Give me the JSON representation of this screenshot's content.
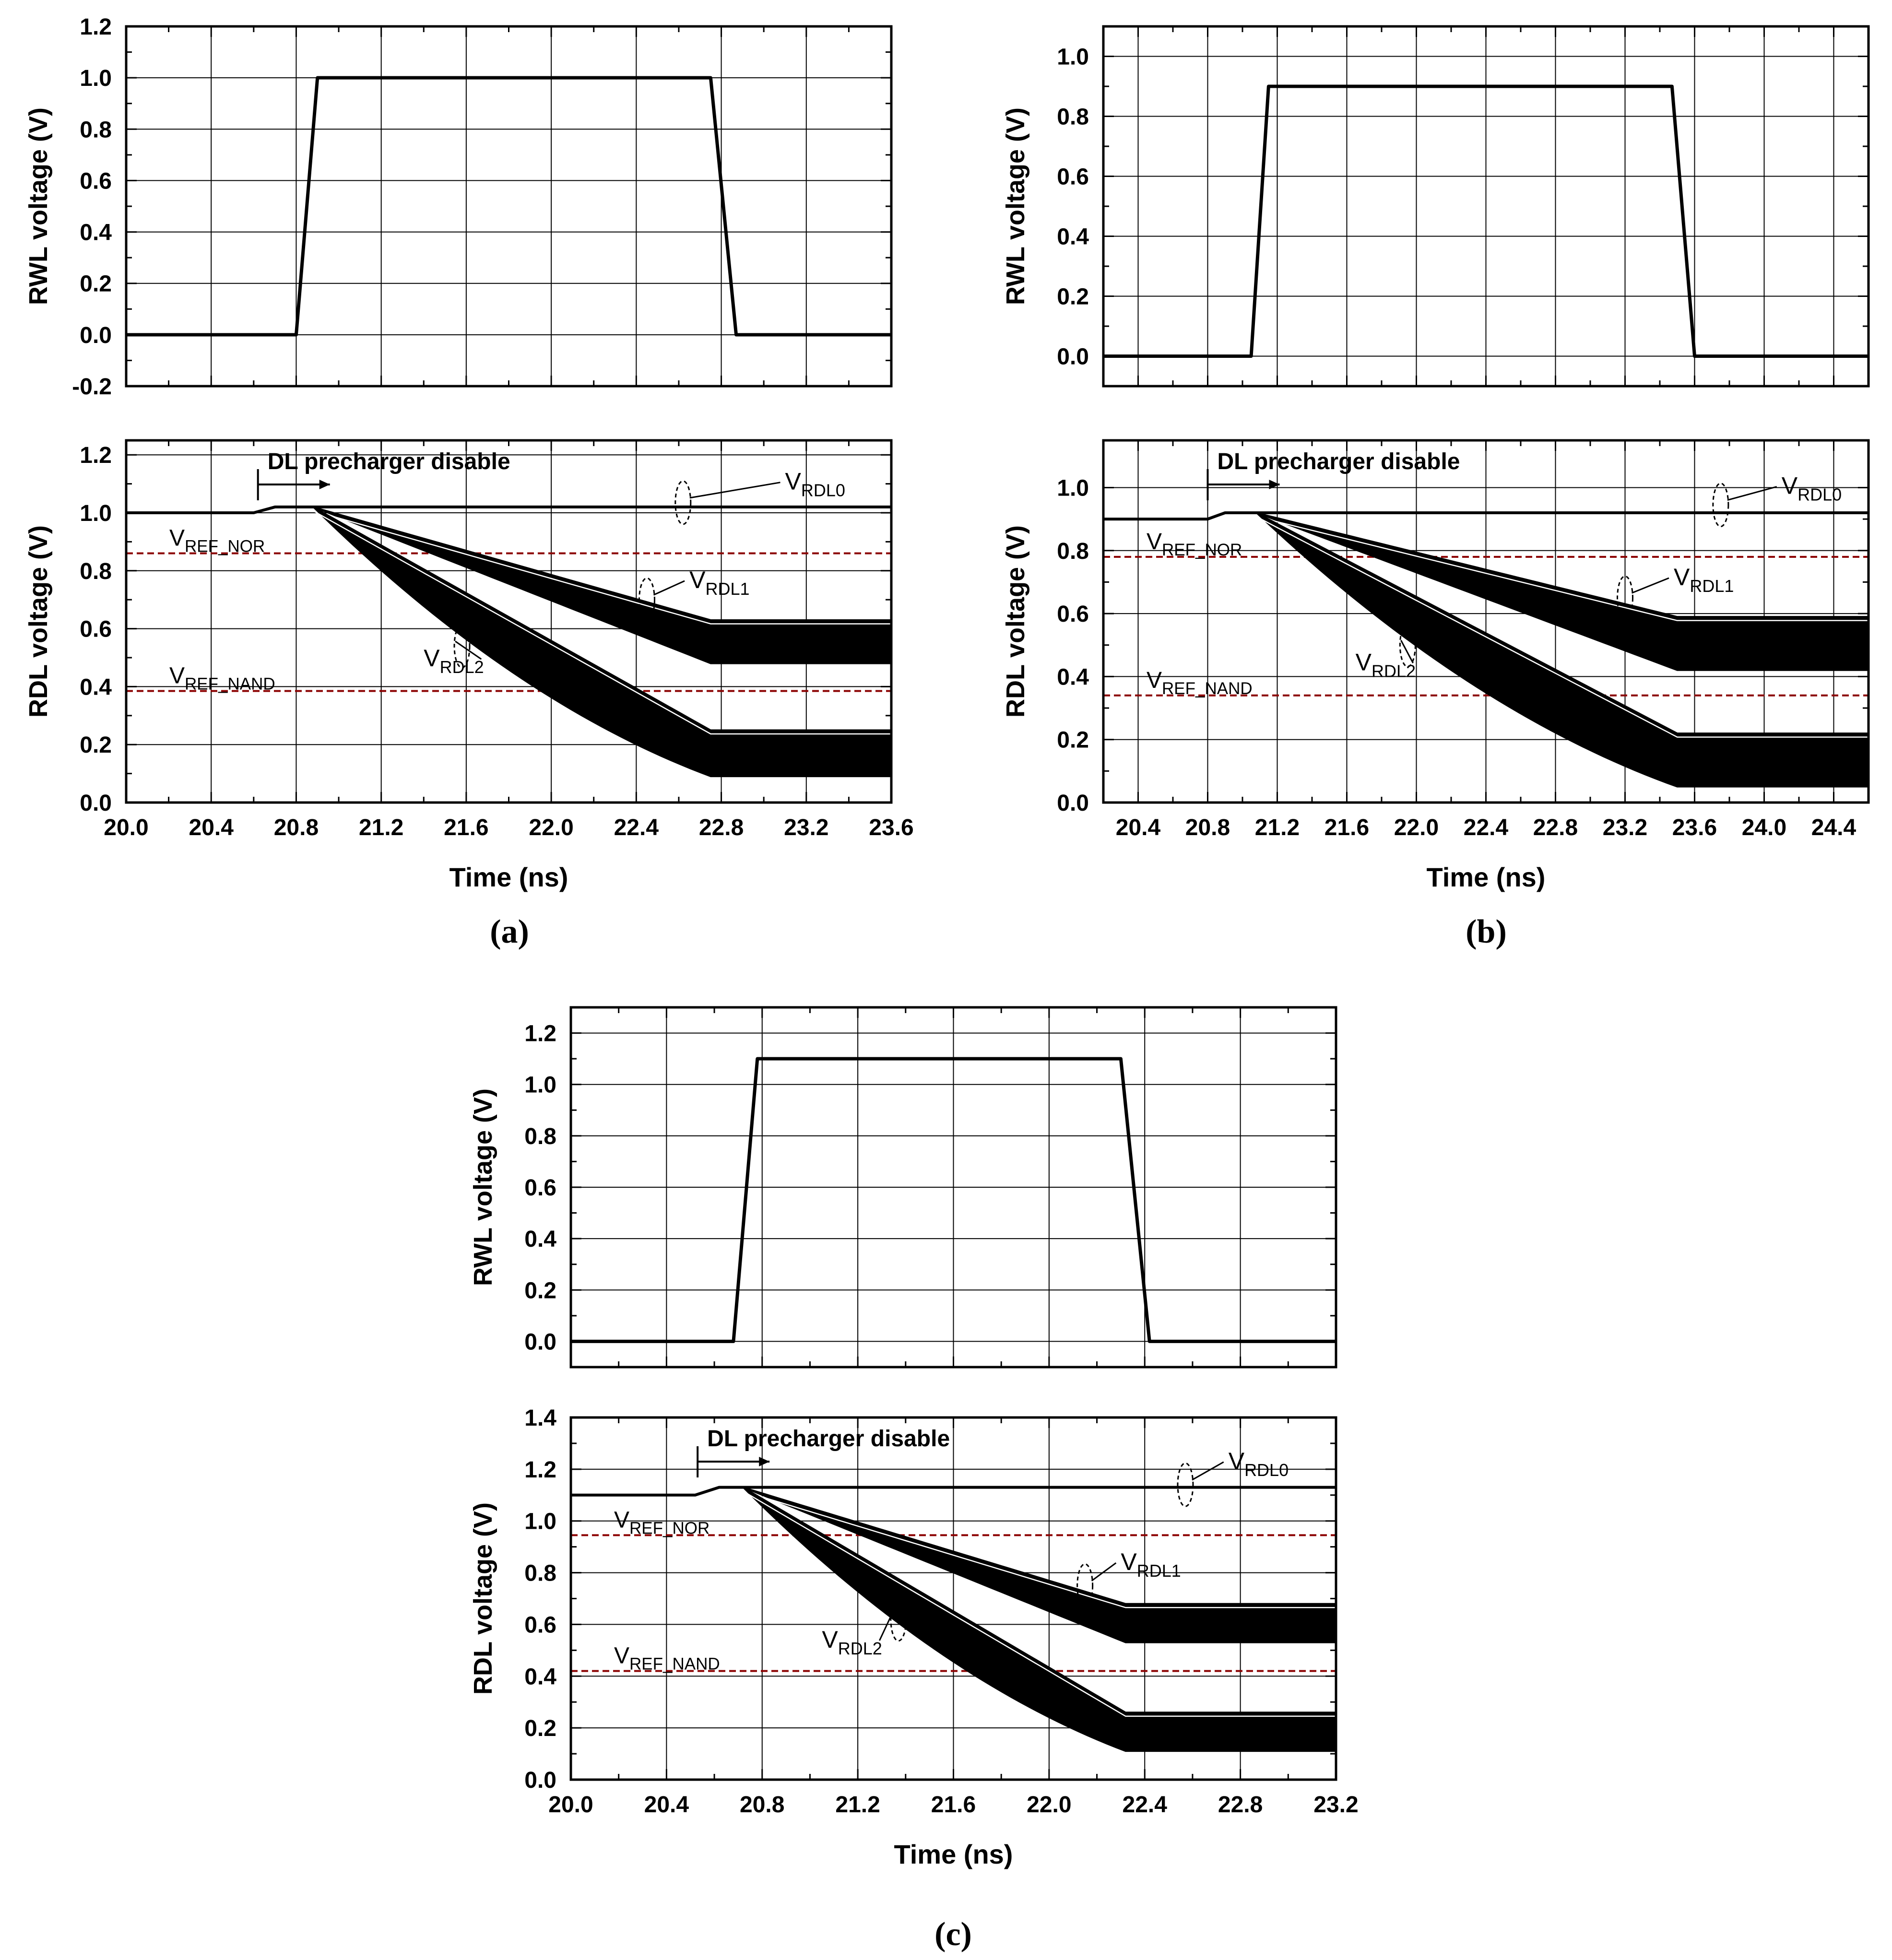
{
  "figure": {
    "panel_labels": [
      "(a)",
      "(b)",
      "(c)"
    ],
    "annotation_text": "DL precharger disable",
    "colors": {
      "trace": "#000000",
      "reference_line": "#8b0000",
      "frame": "#000000"
    }
  },
  "chart_data": [
    {
      "panel": "(a)",
      "type": "line",
      "plot": "RWL",
      "xlabel": "",
      "ylabel": "RWL voltage  (V)",
      "xlim": [
        20.0,
        23.6
      ],
      "ylim": [
        -0.2,
        1.2
      ],
      "xticks": [
        20.0,
        20.4,
        20.8,
        21.2,
        21.6,
        22.0,
        22.4,
        22.8,
        23.2,
        23.6
      ],
      "yticks": [
        -0.2,
        0.0,
        0.2,
        0.4,
        0.6,
        0.8,
        1.0,
        1.2
      ],
      "ytick_labels": [
        "-0.2",
        "0.0",
        "0.2",
        "0.4",
        "0.6",
        "0.8",
        "1.0",
        "1.2"
      ],
      "show_xtick_labels": false,
      "series": [
        {
          "name": "RWL",
          "x": [
            20.0,
            20.8,
            20.9,
            22.75,
            22.87,
            23.6
          ],
          "y": [
            0.0,
            0.0,
            1.0,
            1.0,
            0.0,
            0.0
          ]
        }
      ]
    },
    {
      "panel": "(a)",
      "type": "line",
      "plot": "RDL",
      "xlabel": "Time  (ns)",
      "ylabel": "RDL voltage  (V)",
      "xlim": [
        20.0,
        23.6
      ],
      "ylim": [
        0.0,
        1.25
      ],
      "xticks": [
        20.0,
        20.4,
        20.8,
        21.2,
        21.6,
        22.0,
        22.4,
        22.8,
        23.2,
        23.6
      ],
      "xtick_labels": [
        "20.0",
        "20.4",
        "20.8",
        "21.2",
        "21.6",
        "22.0",
        "22.4",
        "22.8",
        "23.2",
        "23.6"
      ],
      "yticks": [
        0.0,
        0.2,
        0.4,
        0.6,
        0.8,
        1.0,
        1.2
      ],
      "ytick_labels": [
        "0.0",
        "0.2",
        "0.4",
        "0.6",
        "0.8",
        "1.0",
        "1.2"
      ],
      "series": [
        {
          "name": "VRDL0",
          "x": [
            20.0,
            20.6,
            20.7,
            23.6
          ],
          "y": [
            1.0,
            1.0,
            1.02,
            1.02
          ]
        },
        {
          "name": "VRDL1 band",
          "x": [
            20.88,
            22.75,
            23.6
          ],
          "y_upper": [
            1.02,
            0.63,
            0.63
          ],
          "y_lower": [
            1.02,
            0.48,
            0.48
          ]
        },
        {
          "name": "VRDL2 band",
          "x": [
            20.88,
            22.75,
            23.6
          ],
          "y_upper": [
            1.02,
            0.25,
            0.25
          ],
          "y_lower": [
            1.02,
            0.09,
            0.09
          ]
        }
      ],
      "reference_lines": [
        {
          "name": "VREF_NOR",
          "main": "V",
          "sub": "REF_NOR",
          "y": 0.86
        },
        {
          "name": "VREF_NAND",
          "main": "V",
          "sub": "REF_NAND",
          "y": 0.385
        }
      ],
      "annotations": {
        "precharge_x": 20.62,
        "labels": [
          {
            "main": "V",
            "sub": "RDL0",
            "x": 23.1,
            "y": 1.08,
            "target_x": 22.62,
            "target_y": 1.035
          },
          {
            "main": "V",
            "sub": "RDL1",
            "x": 22.65,
            "y": 0.74,
            "target_x": 22.45,
            "target_y": 0.7
          },
          {
            "main": "V",
            "sub": "RDL2",
            "x": 21.4,
            "y": 0.47,
            "target_x": 21.58,
            "target_y": 0.54
          }
        ]
      }
    },
    {
      "panel": "(b)",
      "type": "line",
      "plot": "RWL",
      "xlabel": "",
      "ylabel": "RWL voltage  (V)",
      "xlim": [
        20.2,
        24.6
      ],
      "ylim": [
        -0.1,
        1.1
      ],
      "xticks": [
        20.4,
        20.8,
        21.2,
        21.6,
        22.0,
        22.4,
        22.8,
        23.2,
        23.6,
        24.0,
        24.4
      ],
      "yticks": [
        0.0,
        0.2,
        0.4,
        0.6,
        0.8,
        1.0
      ],
      "ytick_labels": [
        "0.0",
        "0.2",
        "0.4",
        "0.6",
        "0.8",
        "1.0"
      ],
      "show_xtick_labels": false,
      "series": [
        {
          "name": "RWL",
          "x": [
            20.2,
            21.05,
            21.15,
            23.47,
            23.6,
            24.6
          ],
          "y": [
            0.0,
            0.0,
            0.9,
            0.9,
            0.0,
            0.0
          ]
        }
      ]
    },
    {
      "panel": "(b)",
      "type": "line",
      "plot": "RDL",
      "xlabel": "Time  (ns)",
      "ylabel": "RDL voltage  (V)",
      "xlim": [
        20.2,
        24.6
      ],
      "ylim": [
        0.0,
        1.15
      ],
      "xticks": [
        20.4,
        20.8,
        21.2,
        21.6,
        22.0,
        22.4,
        22.8,
        23.2,
        23.6,
        24.0,
        24.4
      ],
      "xtick_labels": [
        "20.4",
        "20.8",
        "21.2",
        "21.6",
        "22.0",
        "22.4",
        "22.8",
        "23.2",
        "23.6",
        "24.0",
        "24.4"
      ],
      "yticks": [
        0.0,
        0.2,
        0.4,
        0.6,
        0.8,
        1.0
      ],
      "ytick_labels": [
        "0.0",
        "0.2",
        "0.4",
        "0.6",
        "0.8",
        "1.0"
      ],
      "series": [
        {
          "name": "VRDL0",
          "x": [
            20.2,
            20.8,
            20.9,
            24.6
          ],
          "y": [
            0.9,
            0.9,
            0.92,
            0.92
          ]
        },
        {
          "name": "VRDL1 band",
          "x": [
            21.08,
            23.5,
            24.6
          ],
          "y_upper": [
            0.92,
            0.59,
            0.59
          ],
          "y_lower": [
            0.92,
            0.42,
            0.42
          ]
        },
        {
          "name": "VRDL2 band",
          "x": [
            21.08,
            23.5,
            24.6
          ],
          "y_upper": [
            0.92,
            0.22,
            0.22
          ],
          "y_lower": [
            0.92,
            0.05,
            0.05
          ]
        }
      ],
      "reference_lines": [
        {
          "name": "VREF_NOR",
          "main": "V",
          "sub": "REF_NOR",
          "y": 0.78
        },
        {
          "name": "VREF_NAND",
          "main": "V",
          "sub": "REF_NAND",
          "y": 0.34
        }
      ],
      "annotations": {
        "precharge_x": 20.8,
        "labels": [
          {
            "main": "V",
            "sub": "RDL0",
            "x": 24.1,
            "y": 0.98,
            "target_x": 23.75,
            "target_y": 0.945
          },
          {
            "main": "V",
            "sub": "RDL1",
            "x": 23.48,
            "y": 0.69,
            "target_x": 23.2,
            "target_y": 0.65
          },
          {
            "main": "V",
            "sub": "RDL2",
            "x": 21.65,
            "y": 0.42,
            "target_x": 21.95,
            "target_y": 0.5
          }
        ]
      }
    },
    {
      "panel": "(c)",
      "type": "line",
      "plot": "RWL",
      "xlabel": "",
      "ylabel": "RWL voltage  (V)",
      "xlim": [
        20.0,
        23.2
      ],
      "ylim": [
        -0.1,
        1.3
      ],
      "xticks": [
        20.0,
        20.4,
        20.8,
        21.2,
        21.6,
        22.0,
        22.4,
        22.8,
        23.2
      ],
      "yticks": [
        0.0,
        0.2,
        0.4,
        0.6,
        0.8,
        1.0,
        1.2
      ],
      "ytick_labels": [
        "0.0",
        "0.2",
        "0.4",
        "0.6",
        "0.8",
        "1.0",
        "1.2"
      ],
      "show_xtick_labels": false,
      "series": [
        {
          "name": "RWL",
          "x": [
            20.0,
            20.68,
            20.78,
            22.3,
            22.42,
            23.2
          ],
          "y": [
            0.0,
            0.0,
            1.1,
            1.1,
            0.0,
            0.0
          ]
        }
      ]
    },
    {
      "panel": "(c)",
      "type": "line",
      "plot": "RDL",
      "xlabel": "Time  (ns)",
      "ylabel": "RDL voltage  (V)",
      "xlim": [
        20.0,
        23.2
      ],
      "ylim": [
        0.0,
        1.4
      ],
      "xticks": [
        20.0,
        20.4,
        20.8,
        21.2,
        21.6,
        22.0,
        22.4,
        22.8,
        23.2
      ],
      "xtick_labels": [
        "20.0",
        "20.4",
        "20.8",
        "21.2",
        "21.6",
        "22.0",
        "22.4",
        "22.8",
        "23.2"
      ],
      "yticks": [
        0.0,
        0.2,
        0.4,
        0.6,
        0.8,
        1.0,
        1.2,
        1.4
      ],
      "ytick_labels": [
        "0.0",
        "0.2",
        "0.4",
        "0.6",
        "0.8",
        "1.0",
        "1.2",
        "1.4"
      ],
      "series": [
        {
          "name": "VRDL0",
          "x": [
            20.0,
            20.52,
            20.62,
            23.2
          ],
          "y": [
            1.1,
            1.1,
            1.13,
            1.13
          ]
        },
        {
          "name": "VRDL1 band",
          "x": [
            20.72,
            22.32,
            23.2
          ],
          "y_upper": [
            1.13,
            0.68,
            0.68
          ],
          "y_lower": [
            1.13,
            0.53,
            0.53
          ]
        },
        {
          "name": "VRDL2 band",
          "x": [
            20.72,
            22.32,
            23.2
          ],
          "y_upper": [
            1.13,
            0.26,
            0.26
          ],
          "y_lower": [
            1.13,
            0.11,
            0.11
          ]
        }
      ],
      "reference_lines": [
        {
          "name": "VREF_NOR",
          "main": "V",
          "sub": "REF_NOR",
          "y": 0.945
        },
        {
          "name": "VREF_NAND",
          "main": "V",
          "sub": "REF_NAND",
          "y": 0.42
        }
      ],
      "annotations": {
        "precharge_x": 20.53,
        "labels": [
          {
            "main": "V",
            "sub": "RDL0",
            "x": 22.75,
            "y": 1.2,
            "target_x": 22.57,
            "target_y": 1.14
          },
          {
            "main": "V",
            "sub": "RDL1",
            "x": 22.3,
            "y": 0.81,
            "target_x": 22.15,
            "target_y": 0.75
          },
          {
            "main": "V",
            "sub": "RDL2",
            "x": 21.05,
            "y": 0.51,
            "target_x": 21.37,
            "target_y": 0.62
          }
        ]
      }
    }
  ]
}
